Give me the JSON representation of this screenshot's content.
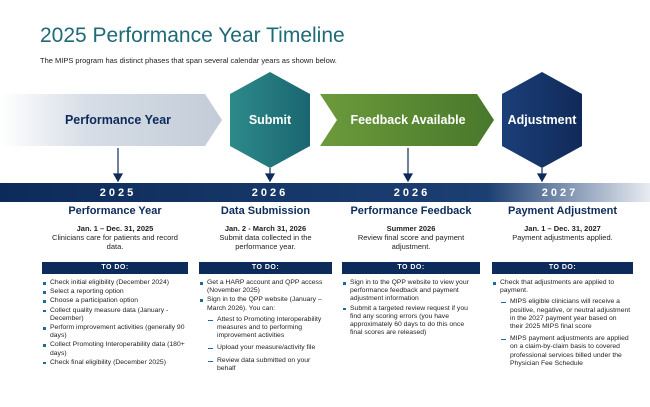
{
  "header": {
    "title": "2025 Performance Year Timeline",
    "subtitle": "The MIPS program has distinct phases that span several calendar years as shown below."
  },
  "phases": [
    "Performance Year",
    "Submit",
    "Feedback Available",
    "Adjustment"
  ],
  "columns": [
    {
      "year": "2025",
      "heading": "Performance Year",
      "dates": "Jan. 1 – Dec. 31, 2025",
      "description": "Clinicians care for patients and record data.",
      "todo": "TO DO:",
      "items": [
        {
          "text": "Check initial eligibility (December 2024)"
        },
        {
          "text": "Select a reporting option"
        },
        {
          "text": "Choose a participation option"
        },
        {
          "text": "Collect quality measure data (January - December)"
        },
        {
          "text": "Perform improvement activities (generally 90 days)"
        },
        {
          "text": "Collect Promoting Interoperability data (180+ days)"
        },
        {
          "text": "Check final eligibility (December 2025)"
        }
      ]
    },
    {
      "year": "2026",
      "heading": "Data Submission",
      "dates": "Jan. 2 - March 31, 2026",
      "description": "Submit data collected in the performance year.",
      "todo": "TO DO:",
      "items": [
        {
          "text": "Get a HARP account and QPP access (November 2025)"
        },
        {
          "text": "Sign in to the QPP website (January – March 2026). You can:",
          "sub": [
            "Attest to Promoting Interoperability measures and to performing improvement activities",
            "Upload your measure/activity file",
            "Review data submitted on your behalf"
          ]
        }
      ]
    },
    {
      "year": "2026",
      "heading": "Performance Feedback",
      "dates": "Summer 2026",
      "description": "Review final score and payment adjustment.",
      "todo": "TO DO:",
      "items": [
        {
          "text": "Sign in to the QPP website to view your performance feedback and payment adjustment information"
        },
        {
          "text": "Submit a targeted review request if you find any scoring errors (you have approximately 60 days to do this once final scores are released)"
        }
      ]
    },
    {
      "year": "2027",
      "heading": "Payment Adjustment",
      "dates": "Jan. 1 – Dec. 31, 2027",
      "description": "Payment adjustments applied.",
      "todo": "TO DO:",
      "items": [
        {
          "text": "Check that adjustments are applied to payment.",
          "sub": [
            "MIPS eligible clinicians will receive a positive, negative, or neutral adjustment in the 2027 payment year based on their 2025 MIPS final score",
            "MIPS payment adjustments are applied on a claim-by-claim basis to covered professional services billed under the Physician Fee Schedule"
          ]
        }
      ]
    }
  ]
}
